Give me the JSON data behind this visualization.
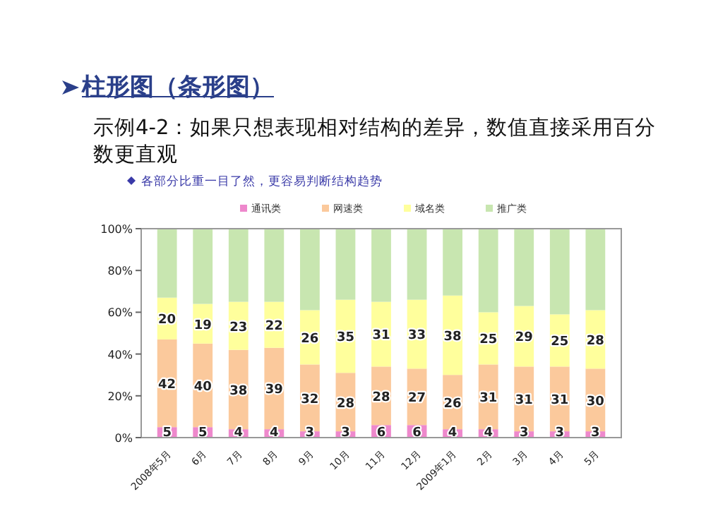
{
  "chart_data": {
    "type": "bar",
    "stacked": true,
    "title": "柱形图（条形图）",
    "subtitle": "示例4-2：如果只想表现相对结构的差异，数值直接采用百分数更直观",
    "annotations": [
      "各部分比重一目了然，更容易判断结构趋势"
    ],
    "categories": [
      "2008年5月",
      "6月",
      "7月",
      "8月",
      "9月",
      "10月",
      "11月",
      "12月",
      "2009年1月",
      "2月",
      "3月",
      "4月",
      "5月"
    ],
    "series": [
      {
        "name": "通讯类",
        "color": "#ee88cc",
        "values": [
          5,
          5,
          4,
          4,
          3,
          3,
          6,
          6,
          4,
          4,
          3,
          3,
          3
        ],
        "value_labels": [
          "5",
          "5",
          "4",
          "4",
          "3",
          "3",
          "6",
          "6",
          "4",
          "4",
          "3",
          "3",
          "3"
        ]
      },
      {
        "name": "网速类",
        "color": "#fbc99c",
        "values": [
          42,
          40,
          38,
          39,
          32,
          28,
          28,
          27,
          26,
          31,
          31,
          31,
          30
        ],
        "value_labels": [
          "42",
          "40",
          "38",
          "39",
          "32",
          "28",
          "28",
          "27",
          "26",
          "31",
          "31",
          "31",
          "30"
        ]
      },
      {
        "name": "域名类",
        "color": "#ffff9c",
        "values": [
          20,
          19,
          23,
          22,
          26,
          35,
          31,
          33,
          38,
          25,
          29,
          25,
          28
        ],
        "value_labels": [
          "20",
          "19",
          "23",
          "22",
          "26",
          "35",
          "31",
          "33",
          "38",
          "25",
          "29",
          "25",
          "28"
        ]
      },
      {
        "name": "推广类",
        "color": "#c8e6b0",
        "values": [
          33,
          36,
          35,
          35,
          39,
          34,
          35,
          34,
          32,
          40,
          37,
          41,
          39
        ]
      }
    ],
    "ylim": [
      0,
      100
    ],
    "yticks": [
      {
        "value": 0,
        "label": "0%"
      },
      {
        "value": 20,
        "label": "20%"
      },
      {
        "value": 40,
        "label": "40%"
      },
      {
        "value": 60,
        "label": "60%"
      },
      {
        "value": 80,
        "label": "80%"
      },
      {
        "value": 100,
        "label": "100%"
      }
    ],
    "legend": "top",
    "grid": false
  }
}
